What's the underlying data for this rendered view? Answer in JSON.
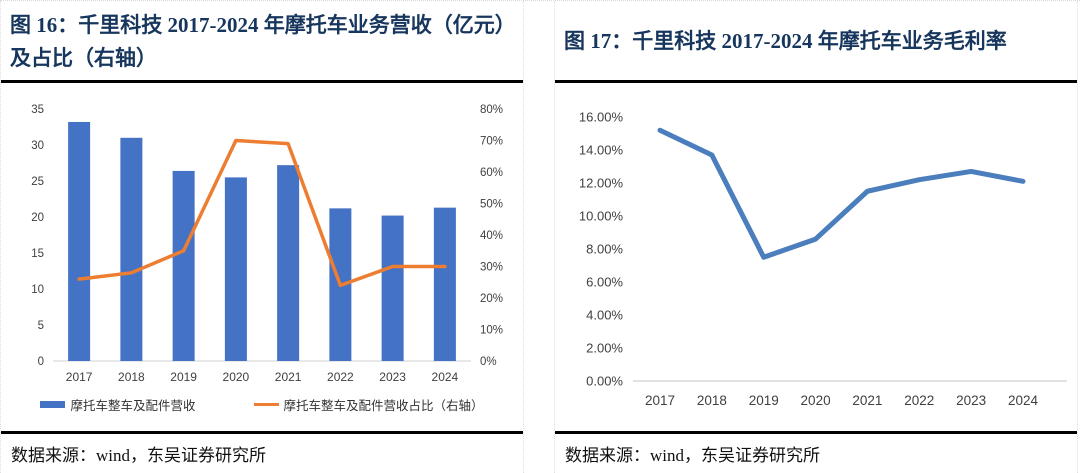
{
  "panels": [
    {
      "title": "图 16：千里科技 2017-2024 年摩托车业务营收（亿元）及占比（右轴）",
      "source": "数据来源：wind，东吴证券研究所"
    },
    {
      "title": "图 17：千里科技 2017-2024 年摩托车业务毛利率",
      "source": "数据来源：wind，东吴证券研究所"
    }
  ],
  "colors": {
    "bar_blue": "#4472C4",
    "line_orange": "#ED7D31",
    "line_blue": "#4A7EBD",
    "title_navy": "#17365D",
    "axis_text": "#404040",
    "axis_line": "#D9D9D9"
  },
  "chart_data": [
    {
      "type": "bar",
      "subtype": "combo-bar-line",
      "title": "千里科技 2017-2024 年摩托车业务营收（亿元）及占比（右轴）",
      "categories": [
        "2017",
        "2018",
        "2019",
        "2020",
        "2021",
        "2022",
        "2023",
        "2024"
      ],
      "series": [
        {
          "name": "摩托车整车及配件营收",
          "type": "bar",
          "axis": "left",
          "color": "#4472C4",
          "values": [
            33.2,
            31.0,
            26.4,
            25.5,
            27.2,
            21.2,
            20.2,
            21.3
          ]
        },
        {
          "name": "摩托车整车及配件营收占比（右轴）",
          "type": "line",
          "axis": "right",
          "color": "#ED7D31",
          "values": [
            26,
            28,
            35,
            70,
            69,
            24,
            30,
            30
          ]
        }
      ],
      "left_axis": {
        "min": 0,
        "max": 35,
        "step": 5,
        "suffix": ""
      },
      "right_axis": {
        "min": 0,
        "max": 80,
        "step": 10,
        "suffix": "%"
      },
      "grid": false,
      "legend_position": "bottom"
    },
    {
      "type": "line",
      "title": "千里科技 2017-2024 年摩托车业务毛利率",
      "categories": [
        "2017",
        "2018",
        "2019",
        "2020",
        "2021",
        "2022",
        "2023",
        "2024"
      ],
      "series": [
        {
          "name": "摩托车业务毛利率",
          "type": "line",
          "color": "#4A7EBD",
          "values": [
            15.2,
            13.7,
            7.5,
            8.6,
            11.5,
            12.2,
            12.7,
            12.1
          ]
        }
      ],
      "y_axis": {
        "min": 0,
        "max": 16,
        "step": 2,
        "format": "percent2"
      },
      "grid": false,
      "legend_position": "none"
    }
  ]
}
